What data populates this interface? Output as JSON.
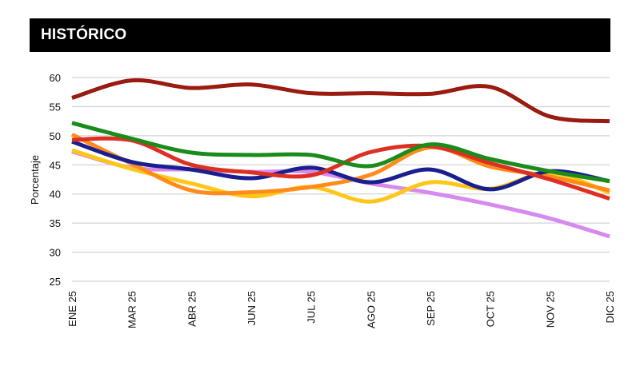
{
  "header": {
    "title": "HISTÓRICO"
  },
  "chart_data": {
    "type": "line",
    "title": "HISTÓRICO",
    "xlabel": "",
    "ylabel": "Porcentaje",
    "ylim": [
      25,
      60
    ],
    "yticks": [
      25,
      30,
      35,
      40,
      45,
      50,
      55,
      60
    ],
    "grid": true,
    "categories": [
      "ENE 25",
      "MAR 25",
      "ABR 25",
      "JUN 25",
      "JUL 25",
      "AGO 25",
      "SEP 25",
      "OCT 25",
      "NOV 25",
      "DIC 25"
    ],
    "series": [
      {
        "color": "#d68af0",
        "values": [
          47.3,
          44.5,
          44.2,
          43.8,
          43.8,
          41.8,
          40.2,
          38.2,
          35.8,
          32.7
        ]
      },
      {
        "color": "#ffc61a",
        "values": [
          47.5,
          44.3,
          41.8,
          39.6,
          41.2,
          38.7,
          42.0,
          40.9,
          43.6,
          40.2
        ]
      },
      {
        "color": "#ff8c1a",
        "values": [
          50.2,
          45.2,
          40.6,
          40.3,
          41.2,
          43.3,
          48.0,
          44.7,
          43.0,
          40.6
        ]
      },
      {
        "color": "#1a1f8f",
        "values": [
          49.0,
          45.5,
          44.2,
          42.7,
          44.5,
          42.0,
          44.2,
          40.8,
          43.9,
          42.2
        ]
      },
      {
        "color": "#dd3022",
        "values": [
          49.3,
          49.2,
          45.0,
          43.7,
          43.2,
          47.2,
          48.2,
          45.3,
          42.5,
          39.2
        ]
      },
      {
        "color": "#1a8c1a",
        "values": [
          52.2,
          49.5,
          47.1,
          46.7,
          46.7,
          44.8,
          48.5,
          46.0,
          43.9,
          42.2
        ]
      },
      {
        "color": "#9a1b0f",
        "values": [
          56.5,
          59.5,
          58.2,
          58.8,
          57.3,
          57.3,
          57.2,
          58.4,
          53.3,
          52.5
        ]
      }
    ]
  }
}
